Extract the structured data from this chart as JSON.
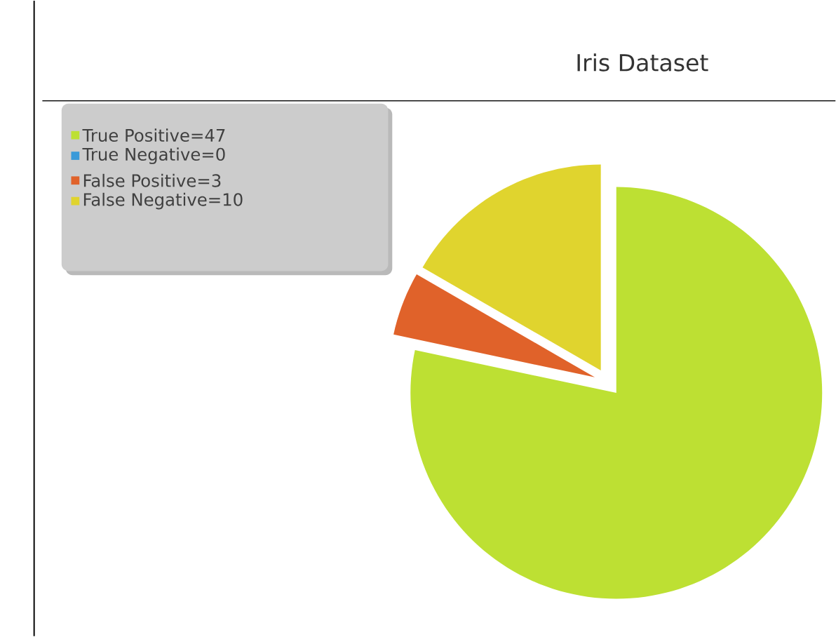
{
  "chart_data": {
    "type": "pie",
    "title": "Iris Dataset",
    "categories": [
      "True Positive=47",
      "True Negative=0",
      "False Positive=3",
      "False Negative=10"
    ],
    "values": [
      47,
      0,
      3,
      10
    ],
    "colors": [
      "#bde033",
      "#3a9ad9",
      "#e0622a",
      "#e0d42e"
    ],
    "legend": "top left"
  }
}
